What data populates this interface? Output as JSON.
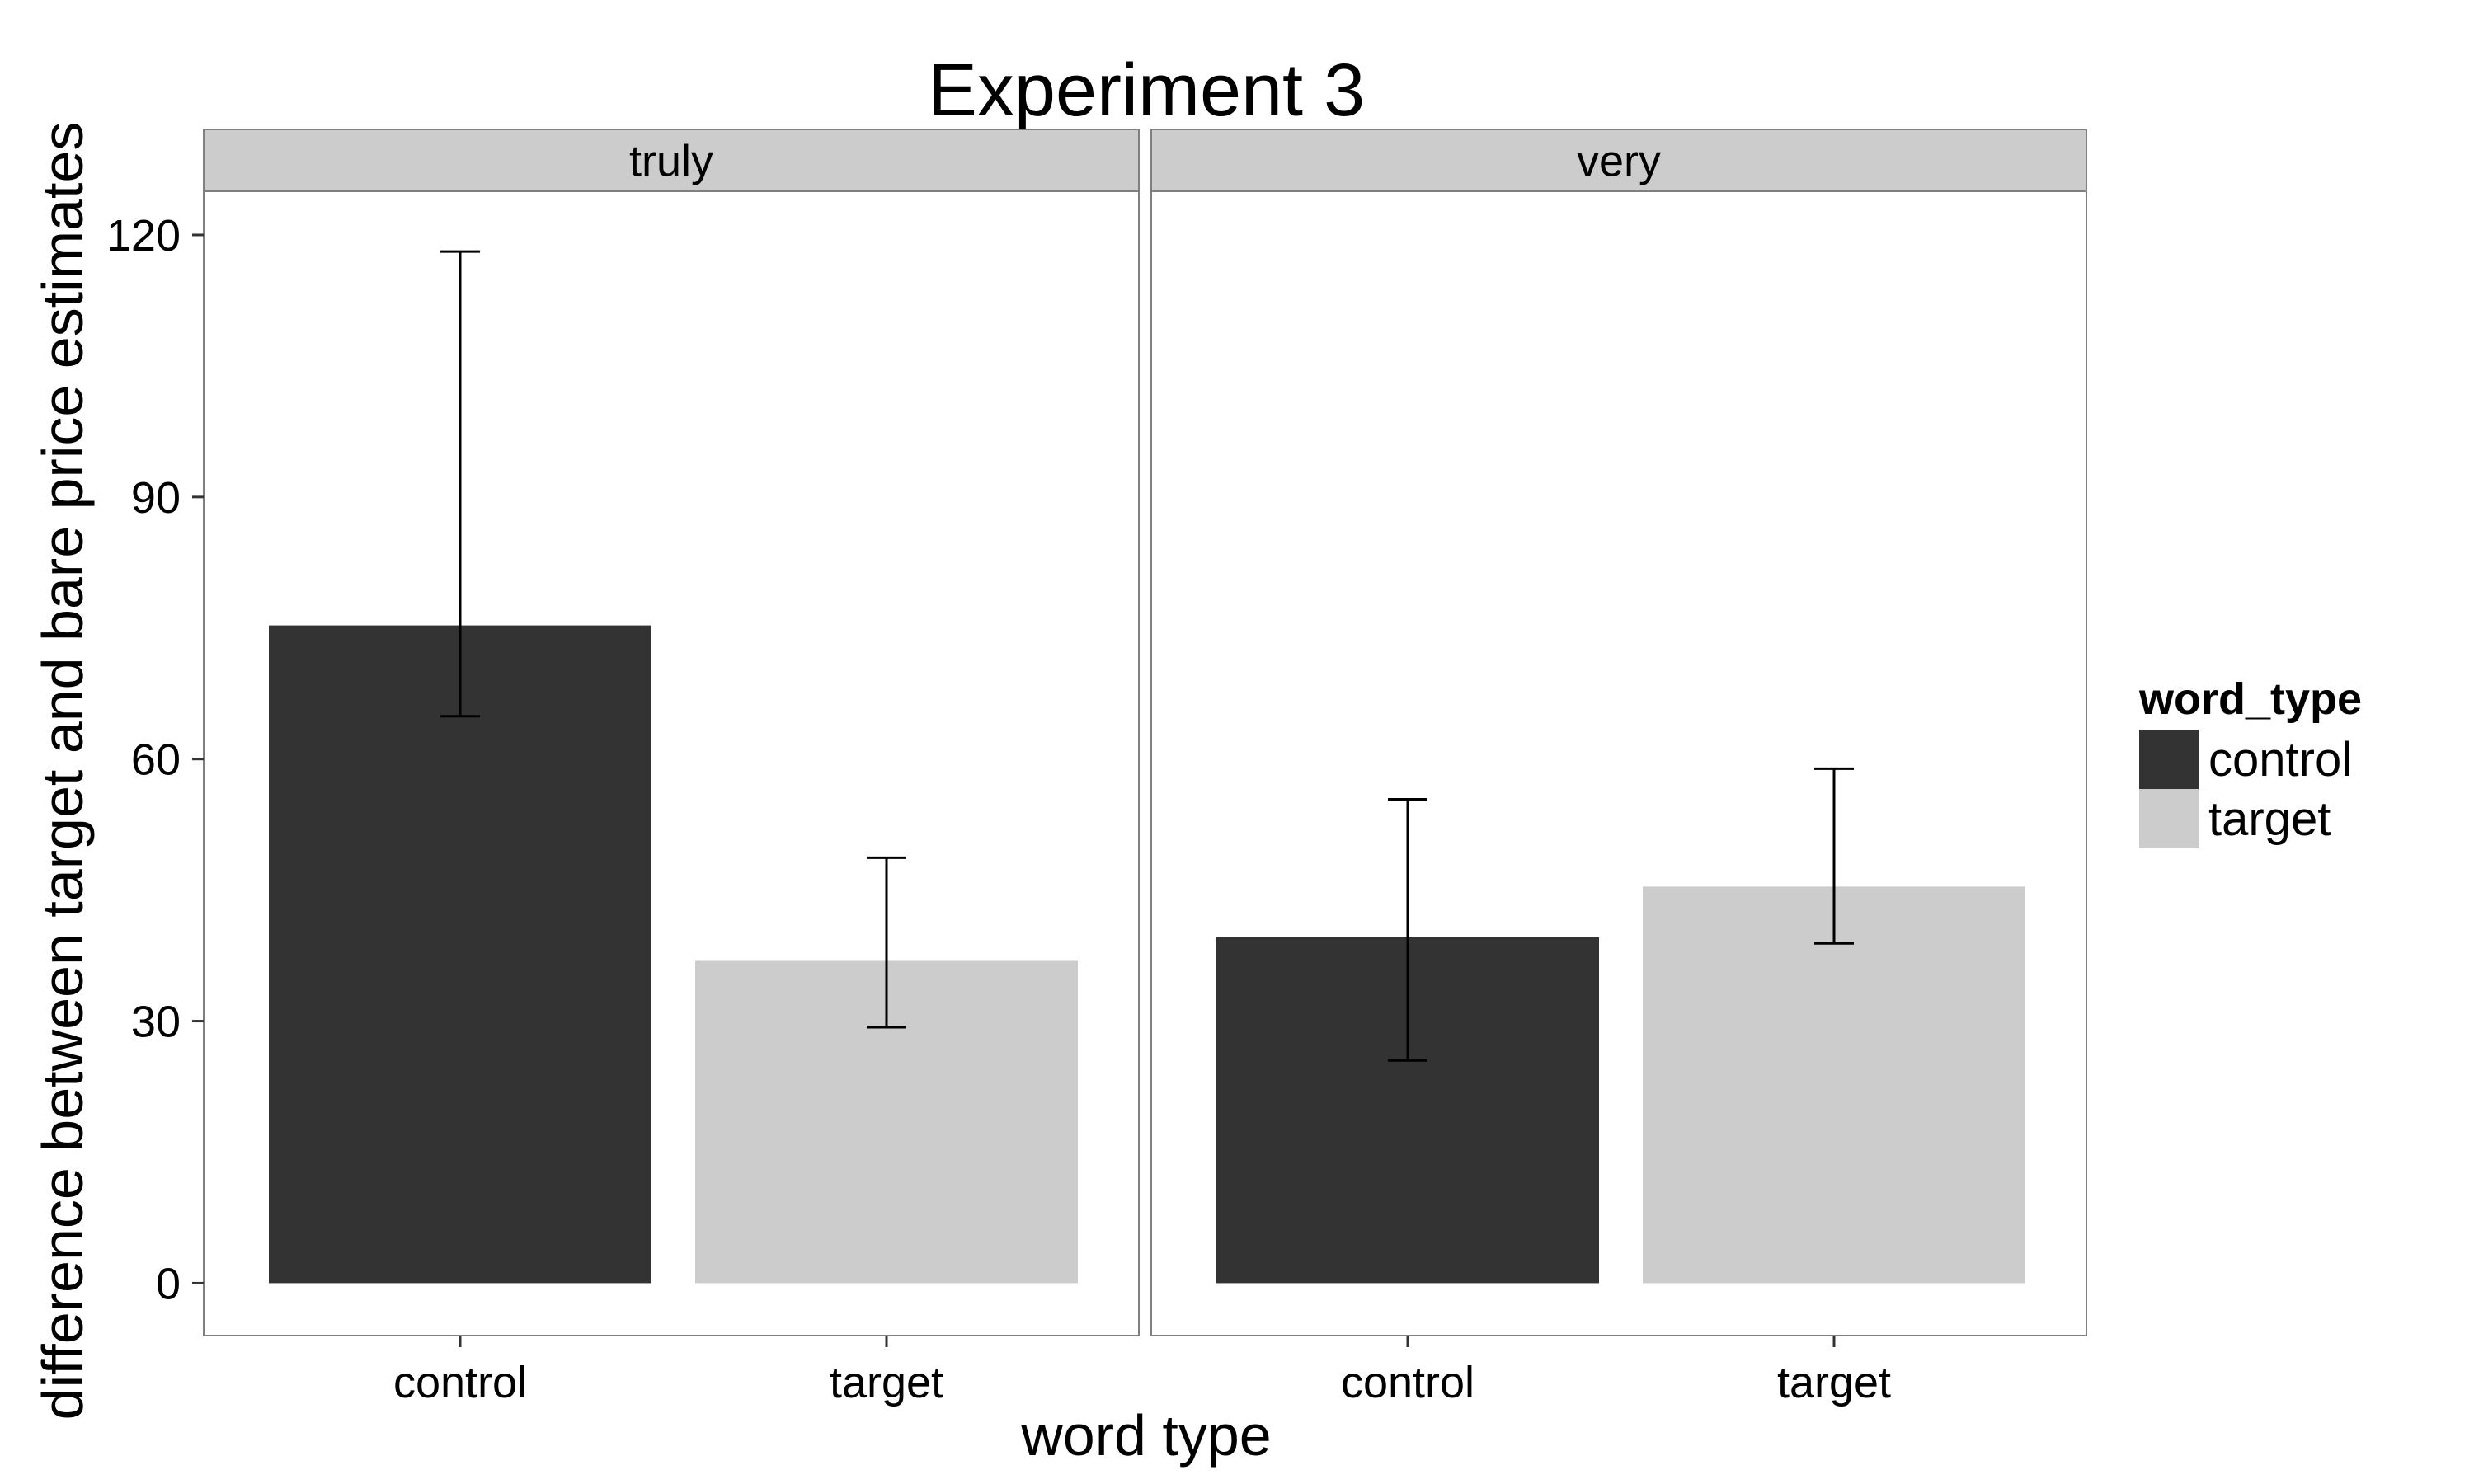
{
  "chart_data": {
    "type": "bar",
    "title": "Experiment 3",
    "xlabel": "word type",
    "ylabel": "difference between target and bare price estimates",
    "ylim": [
      -6,
      125
    ],
    "yticks": [
      0,
      30,
      60,
      90,
      120
    ],
    "categories": [
      "control",
      "target"
    ],
    "facets": [
      {
        "label": "truly",
        "bars": [
          {
            "category": "control",
            "value": 75.3,
            "ci_low": 64.9,
            "ci_high": 118.1
          },
          {
            "category": "target",
            "value": 36.9,
            "ci_low": 29.3,
            "ci_high": 48.7
          }
        ]
      },
      {
        "label": "very",
        "bars": [
          {
            "category": "control",
            "value": 39.6,
            "ci_low": 25.5,
            "ci_high": 55.4
          },
          {
            "category": "target",
            "value": 45.4,
            "ci_low": 38.9,
            "ci_high": 58.9
          }
        ]
      }
    ],
    "legend": {
      "title": "word_type",
      "position": "right",
      "items": [
        {
          "label": "control",
          "color": "#333333"
        },
        {
          "label": "target",
          "color": "#cccccc"
        }
      ]
    },
    "grid": false
  },
  "colors": {
    "strip_background": "#cccccc",
    "panel_border": "#7f7f7f",
    "control": "#333333",
    "target": "#cccccc",
    "errorbar": "#000000"
  }
}
